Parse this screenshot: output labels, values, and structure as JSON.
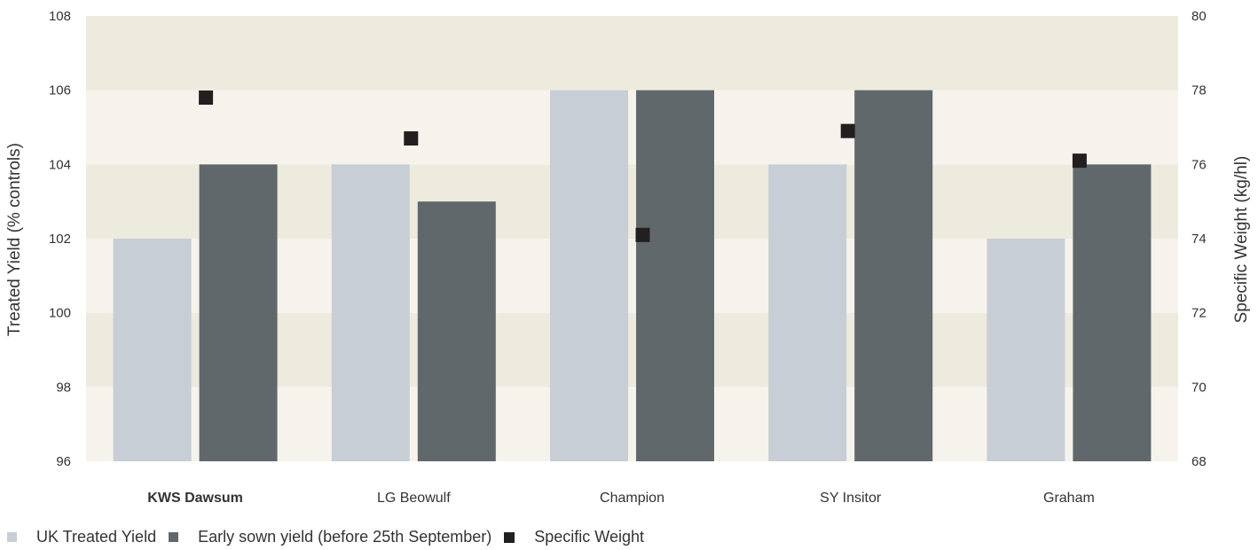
{
  "chart_data": {
    "type": "bar",
    "categories": [
      "KWS Dawsum",
      "LG Beowulf",
      "Champion",
      "SY Insitor",
      "Graham"
    ],
    "highlight_category": "KWS Dawsum",
    "series": [
      {
        "name": "UK Treated Yield",
        "type": "bar",
        "axis": "left",
        "values": [
          102,
          104,
          106,
          104,
          102
        ],
        "color": "#c8ced5"
      },
      {
        "name": "Early sown yield (before 25th September)",
        "type": "bar",
        "axis": "left",
        "values": [
          104,
          103,
          106,
          106,
          104
        ],
        "color": "#61686b"
      },
      {
        "name": "Specific Weight",
        "type": "scatter",
        "axis": "right",
        "values": [
          77.8,
          76.7,
          74.1,
          76.9,
          76.1
        ],
        "color": "#231f20"
      }
    ],
    "ylabel": "Treated Yield (% controls)",
    "ylabel_right": "Specific Weight (kg/hl)",
    "ylim": [
      96,
      108
    ],
    "ylim_right": [
      68,
      80
    ],
    "yticks": [
      "96",
      "98",
      "100",
      "102",
      "104",
      "106",
      "108"
    ],
    "yticks_right": [
      "68",
      "70",
      "72",
      "74",
      "76",
      "78",
      "80"
    ],
    "band_colors": [
      "#f5f3ec",
      "#edeade"
    ],
    "highlight_color": "#f07d1a",
    "legend_position": "bottom-left"
  }
}
